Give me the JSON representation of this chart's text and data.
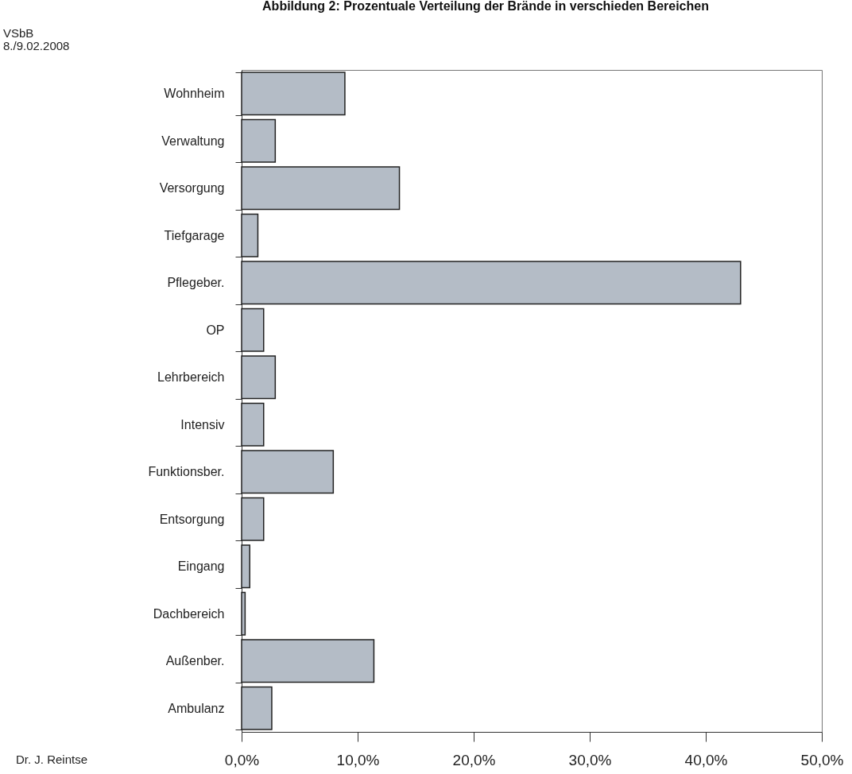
{
  "chart_data": {
    "type": "bar",
    "orientation": "horizontal",
    "title": "Abbildung 2: Prozentuale Verteilung der Brände in verschieden Bereichen",
    "categories": [
      "Wohnheim",
      "Verwaltung",
      "Versorgung",
      "Tiefgarage",
      "Pflegeber.",
      "OP",
      "Lehrbereich",
      "Intensiv",
      "Funktionsber.",
      "Entsorgung",
      "Eingang",
      "Dachbereich",
      "Außenber.",
      "Ambulanz"
    ],
    "values": [
      8.9,
      2.9,
      13.6,
      1.4,
      43.0,
      1.9,
      2.9,
      1.9,
      7.9,
      1.9,
      0.7,
      0.3,
      11.4,
      2.6
    ],
    "color": "#b4bcc6",
    "xlim": [
      0,
      50
    ],
    "xticks": [
      {
        "value": 0,
        "label": "0,0%"
      },
      {
        "value": 10,
        "label": "10,0%"
      },
      {
        "value": 20,
        "label": "20,0%"
      },
      {
        "value": 30,
        "label": "30,0%"
      },
      {
        "value": 40,
        "label": "40,0%"
      },
      {
        "value": 50,
        "label": "50,0%"
      }
    ],
    "grid": false,
    "annotations": [
      "VSbB\n8./9.02.2008",
      "Dr. J. Reintse"
    ]
  }
}
